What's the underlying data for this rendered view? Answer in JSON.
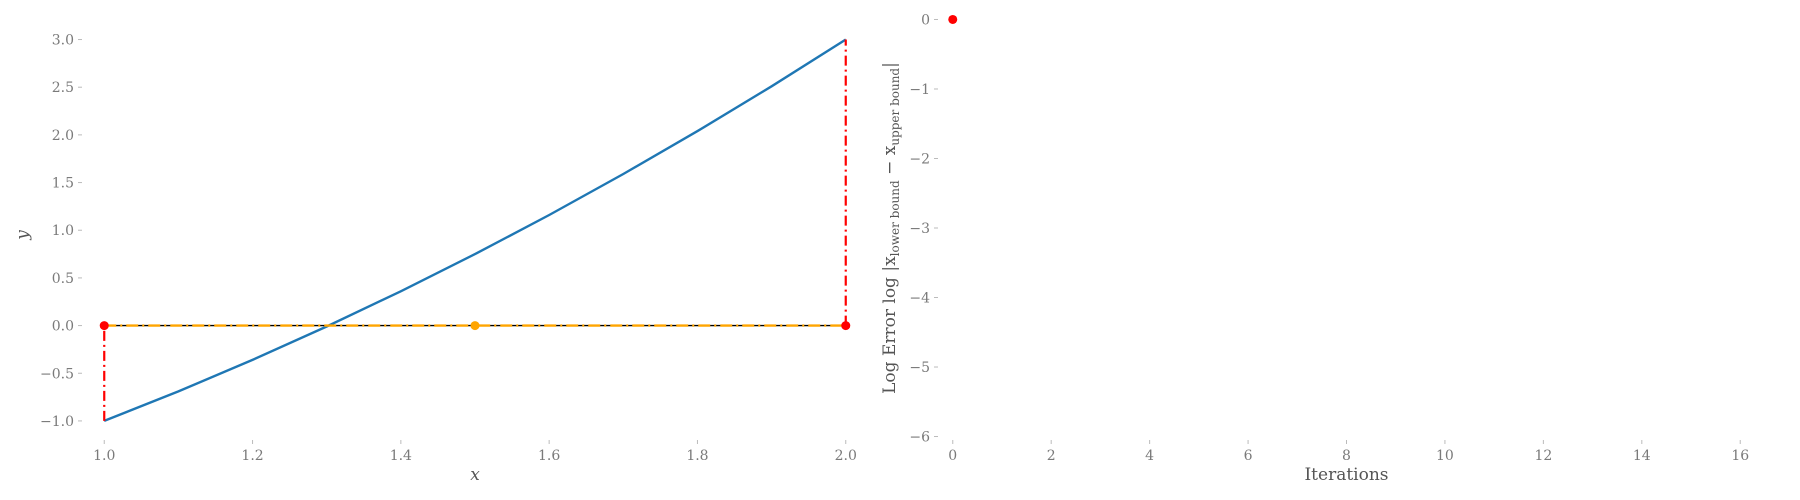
{
  "colors": {
    "curve": "#1f77b4",
    "bracket": "#ff0000",
    "midpoint": "#ffa500",
    "guide": "#000000",
    "tick_text": "#7a7a7a"
  },
  "chart_data": [
    {
      "type": "line",
      "title": "",
      "xlabel": "x",
      "ylabel": "y",
      "xlim": [
        0.97,
        2.03
      ],
      "ylim": [
        -1.2,
        3.1
      ],
      "grid": false,
      "xticks": [
        1.0,
        1.2,
        1.4,
        1.6,
        1.8,
        2.0
      ],
      "xtick_labels": [
        "1.0",
        "1.2",
        "1.4",
        "1.6",
        "1.8",
        "2.0"
      ],
      "yticks": [
        -1.0,
        -0.5,
        0.0,
        0.5,
        1.0,
        1.5,
        2.0,
        2.5,
        3.0
      ],
      "ytick_labels": [
        "−1.0",
        "−0.5",
        "0.0",
        "0.5",
        "1.0",
        "1.5",
        "2.0",
        "2.5",
        "3.0"
      ],
      "series": [
        {
          "style": "solid-line",
          "x": [
            1.0,
            1.1,
            1.2,
            1.3,
            1.4,
            1.5,
            1.6,
            1.7,
            1.8,
            1.9,
            2.0
          ],
          "y": [
            -1.0,
            -0.69,
            -0.36,
            -0.01,
            0.36,
            0.75,
            1.16,
            1.59,
            2.04,
            2.51,
            3.0
          ]
        },
        {
          "style": "dash-dot",
          "x": [
            1.0,
            1.0
          ],
          "y": [
            -1.0,
            0.0
          ]
        },
        {
          "style": "dash-dot",
          "x": [
            2.0,
            2.0
          ],
          "y": [
            0.0,
            3.0
          ]
        },
        {
          "style": "dash-dot-horizontal",
          "x": [
            1.0,
            2.0
          ],
          "y": [
            0.0,
            0.0
          ]
        }
      ],
      "markers": [
        {
          "role": "lower-bound",
          "x": 1.0,
          "y": 0.0
        },
        {
          "role": "midpoint",
          "x": 1.5,
          "y": 0.0
        },
        {
          "role": "upper-bound",
          "x": 2.0,
          "y": 0.0
        }
      ]
    },
    {
      "type": "scatter",
      "title": "",
      "xlabel": "Iterations",
      "ylabel": "Log Error log |x_lower bound − x_upper bound|",
      "ylabel_parts": {
        "prefix": "Log Error log |x",
        "sub1": "lower bound",
        "mid": " − x",
        "sub2": "upper bound",
        "suffix": "|"
      },
      "xlim": [
        -0.3,
        16.3
      ],
      "ylim": [
        -6.05,
        0.05
      ],
      "grid": false,
      "xticks": [
        0,
        2,
        4,
        6,
        8,
        10,
        12,
        14,
        16
      ],
      "xtick_labels": [
        "0",
        "2",
        "4",
        "6",
        "8",
        "10",
        "12",
        "14",
        "16"
      ],
      "yticks": [
        0,
        -1,
        -2,
        -3,
        -4,
        -5,
        -6
      ],
      "ytick_labels": [
        "0",
        "−1",
        "−2",
        "−3",
        "−4",
        "−5",
        "−6"
      ],
      "points": [
        {
          "x": 0,
          "y": 0
        }
      ]
    }
  ]
}
